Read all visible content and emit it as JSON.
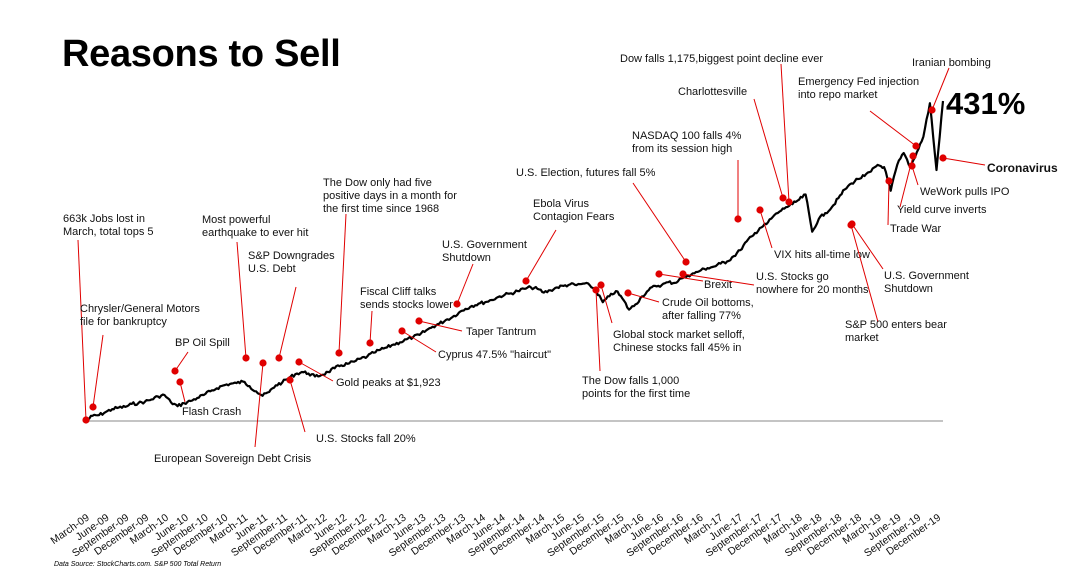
{
  "title": "Reasons to Sell",
  "gain_label": "431%",
  "source": "Data Source: StockCharts.com. S&P 500 Total Return",
  "chart_data": {
    "type": "line",
    "x_start": "March-09",
    "x_end": "March-20",
    "x_ticks": [
      "March-09",
      "June-09",
      "September-09",
      "December-09",
      "March-10",
      "June-10",
      "September-10",
      "December-10",
      "March-11",
      "June-11",
      "September-11",
      "December-11",
      "March-12",
      "June-12",
      "September-12",
      "December-12",
      "March-13",
      "June-13",
      "September-13",
      "December-13",
      "March-14",
      "June-14",
      "September-14",
      "December-14",
      "March-15",
      "June-15",
      "September-15",
      "December-15",
      "March-16",
      "June-16",
      "September-16",
      "December-16",
      "March-17",
      "June-17",
      "September-17",
      "December-17",
      "March-18",
      "June-18",
      "September-18",
      "December-18",
      "March-19",
      "June-19",
      "September-19",
      "December-19"
    ],
    "series": [
      {
        "values": [
          0,
          7,
          8,
          12,
          16,
          18,
          19,
          23,
          24,
          26,
          29,
          33,
          35,
          25,
          20,
          24,
          27,
          31,
          35,
          40,
          44,
          48,
          50,
          51,
          53,
          47,
          40,
          34,
          39,
          48,
          52,
          58,
          63,
          66,
          64,
          60,
          62,
          66,
          71,
          75,
          77,
          80,
          84,
          87,
          92,
          96,
          99,
          103,
          106,
          110,
          113,
          116,
          122,
          127,
          131,
          136,
          140,
          146,
          151,
          155,
          158,
          160,
          163,
          167,
          170,
          172,
          175,
          178,
          180,
          178,
          173,
          176,
          180,
          182,
          184,
          183,
          185,
          183,
          175,
          160,
          168,
          175,
          165,
          150,
          157,
          168,
          176,
          182,
          183,
          187,
          186,
          192,
          196,
          199,
          203,
          206,
          208,
          212,
          215,
          222,
          230,
          242,
          250,
          260,
          265,
          275,
          282,
          288,
          292,
          298,
          305,
          255,
          272,
          280,
          288,
          300,
          312,
          320,
          326,
          330,
          336,
          345,
          342,
          310,
          345,
          361,
          342,
          362,
          383,
          428,
          338,
          431
        ]
      }
    ],
    "annotations": [
      {
        "text": [
          "663k Jobs lost in",
          "March, total tops 5"
        ]
      },
      {
        "text": [
          "Chrysler/General Motors",
          "file for bankruptcy"
        ]
      },
      {
        "text": [
          "BP Oil Spill"
        ]
      },
      {
        "text": [
          "Flash Crash"
        ]
      },
      {
        "text": [
          "Most powerful",
          "earthquake to ever hit"
        ]
      },
      {
        "text": [
          "European Sovereign Debt Crisis"
        ]
      },
      {
        "text": [
          "S&P Downgrades",
          "U.S. Debt"
        ]
      },
      {
        "text": [
          "U.S. Stocks fall 20%"
        ]
      },
      {
        "text": [
          "Gold peaks at $1,923"
        ]
      },
      {
        "text": [
          "The Dow only had five",
          "positive days in a month for",
          "the first time since 1968"
        ]
      },
      {
        "text": [
          "Fiscal Cliff talks",
          "sends stocks lower"
        ]
      },
      {
        "text": [
          "Cyprus 47.5% \"haircut\""
        ]
      },
      {
        "text": [
          "Taper Tantrum"
        ]
      },
      {
        "text": [
          "U.S. Government",
          "Shutdown"
        ]
      },
      {
        "text": [
          "Ebola Virus",
          "Contagion Fears"
        ]
      },
      {
        "text": [
          "The Dow falls 1,000",
          "points for the first time"
        ]
      },
      {
        "text": [
          "Global stock market selloff,",
          "Chinese stocks fall 45% in"
        ]
      },
      {
        "text": [
          "Crude Oil bottoms,",
          "after falling 77%"
        ]
      },
      {
        "text": [
          "U.S. Election, futures fall 5%"
        ]
      },
      {
        "text": [
          "Brexit"
        ]
      },
      {
        "text": [
          "U.S. Stocks go",
          "nowhere for 20 months"
        ]
      },
      {
        "text": [
          "NASDAQ 100 falls 4%",
          "from its  session high"
        ]
      },
      {
        "text": [
          "VIX hits all-time low"
        ]
      },
      {
        "text": [
          "Charlottesville"
        ]
      },
      {
        "text": [
          "Dow falls 1,175,biggest point decline ever"
        ]
      },
      {
        "text": [
          "S&P 500 enters bear",
          "market"
        ]
      },
      {
        "text": [
          "U.S. Government",
          "Shutdown"
        ]
      },
      {
        "text": [
          "Trade War"
        ]
      },
      {
        "text": [
          "Emergency Fed injection",
          "into repo market"
        ]
      },
      {
        "text": [
          "Yield curve inverts"
        ]
      },
      {
        "text": [
          "WeWork pulls IPO"
        ]
      },
      {
        "text": [
          "Iranian bombing"
        ]
      },
      {
        "text": [
          "Coronavirus"
        ],
        "bold": true
      }
    ],
    "colors": {
      "line": "#000000",
      "marker": "#e00000",
      "leader": "#e00000",
      "baseline": "#888888"
    },
    "grid": false,
    "legend": "none"
  }
}
